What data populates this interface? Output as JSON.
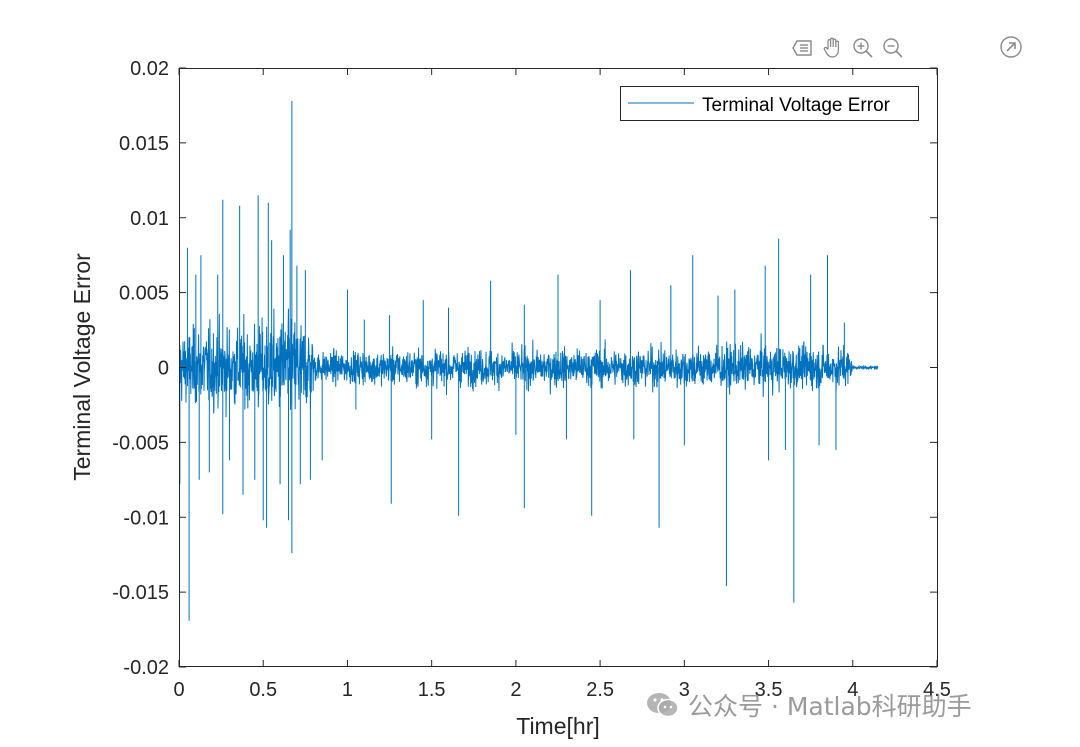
{
  "chart_data": {
    "type": "line",
    "xlabel": "Time[hr]",
    "ylabel": "Terminal Voltage Error",
    "xlim": [
      0,
      4.5
    ],
    "ylim": [
      -0.02,
      0.02
    ],
    "xticks": [
      0,
      0.5,
      1,
      1.5,
      2,
      2.5,
      3,
      3.5,
      4,
      4.5
    ],
    "xtick_labels": [
      "0",
      "0.5",
      "1",
      "1.5",
      "2",
      "2.5",
      "3",
      "3.5",
      "4",
      "4.5"
    ],
    "yticks": [
      -0.02,
      -0.015,
      -0.01,
      -0.005,
      0,
      0.005,
      0.01,
      0.015,
      0.02
    ],
    "ytick_labels": [
      "-0.02",
      "-0.015",
      "-0.01",
      "-0.005",
      "0",
      "0.005",
      "0.01",
      "0.015",
      "0.02"
    ],
    "grid": false,
    "legend_position": "top-right",
    "series": [
      {
        "name": "Terminal Voltage Error",
        "color": "#0072BD",
        "envelope": [
          {
            "t": 0.0,
            "amp": 0.0035
          },
          {
            "t": 0.2,
            "amp": 0.004
          },
          {
            "t": 0.4,
            "amp": 0.004
          },
          {
            "t": 0.5,
            "amp": 0.0045
          },
          {
            "t": 0.65,
            "amp": 0.005
          },
          {
            "t": 0.79,
            "amp": 0.0045
          },
          {
            "t": 0.8,
            "amp": 0.0015
          },
          {
            "t": 1.5,
            "amp": 0.0018
          },
          {
            "t": 2.0,
            "amp": 0.0018
          },
          {
            "t": 3.0,
            "amp": 0.002
          },
          {
            "t": 3.5,
            "amp": 0.0022
          },
          {
            "t": 3.98,
            "amp": 0.002
          },
          {
            "t": 4.0,
            "amp": 0.0002
          },
          {
            "t": 4.15,
            "amp": 0.0001
          }
        ],
        "spikes": [
          {
            "t": 0.005,
            "y": 0.0015
          },
          {
            "t": 0.005,
            "y": -0.0078
          },
          {
            "t": 0.05,
            "y": 0.008
          },
          {
            "t": 0.06,
            "y": -0.0169
          },
          {
            "t": 0.1,
            "y": 0.0062
          },
          {
            "t": 0.12,
            "y": -0.0075
          },
          {
            "t": 0.13,
            "y": 0.0075
          },
          {
            "t": 0.18,
            "y": -0.007
          },
          {
            "t": 0.23,
            "y": 0.0062
          },
          {
            "t": 0.26,
            "y": 0.0112
          },
          {
            "t": 0.26,
            "y": -0.0098
          },
          {
            "t": 0.3,
            "y": -0.0062
          },
          {
            "t": 0.36,
            "y": 0.0108
          },
          {
            "t": 0.38,
            "y": -0.0085
          },
          {
            "t": 0.45,
            "y": -0.0075
          },
          {
            "t": 0.47,
            "y": 0.0115
          },
          {
            "t": 0.5,
            "y": -0.0102
          },
          {
            "t": 0.52,
            "y": -0.0107
          },
          {
            "t": 0.53,
            "y": 0.011
          },
          {
            "t": 0.55,
            "y": 0.0085
          },
          {
            "t": 0.6,
            "y": -0.0078
          },
          {
            "t": 0.62,
            "y": 0.0075
          },
          {
            "t": 0.65,
            "y": -0.0102
          },
          {
            "t": 0.66,
            "y": 0.0092
          },
          {
            "t": 0.67,
            "y": 0.0178
          },
          {
            "t": 0.67,
            "y": -0.0124
          },
          {
            "t": 0.7,
            "y": 0.0068
          },
          {
            "t": 0.72,
            "y": -0.0078
          },
          {
            "t": 0.75,
            "y": 0.0065
          },
          {
            "t": 0.78,
            "y": -0.0075
          },
          {
            "t": 0.85,
            "y": -0.0062
          },
          {
            "t": 1.0,
            "y": 0.0052
          },
          {
            "t": 1.05,
            "y": -0.0028
          },
          {
            "t": 1.1,
            "y": 0.0032
          },
          {
            "t": 1.25,
            "y": 0.0035
          },
          {
            "t": 1.26,
            "y": -0.0091
          },
          {
            "t": 1.45,
            "y": 0.0045
          },
          {
            "t": 1.5,
            "y": -0.0048
          },
          {
            "t": 1.6,
            "y": 0.004
          },
          {
            "t": 1.66,
            "y": -0.0099
          },
          {
            "t": 1.85,
            "y": 0.0058
          },
          {
            "t": 2.0,
            "y": -0.0045
          },
          {
            "t": 2.05,
            "y": 0.0042
          },
          {
            "t": 2.05,
            "y": -0.0094
          },
          {
            "t": 2.25,
            "y": 0.0062
          },
          {
            "t": 2.3,
            "y": -0.0048
          },
          {
            "t": 2.45,
            "y": -0.0099
          },
          {
            "t": 2.5,
            "y": 0.0045
          },
          {
            "t": 2.68,
            "y": 0.0065
          },
          {
            "t": 2.7,
            "y": -0.0048
          },
          {
            "t": 2.85,
            "y": -0.0107
          },
          {
            "t": 2.92,
            "y": 0.0055
          },
          {
            "t": 3.0,
            "y": -0.0052
          },
          {
            "t": 3.05,
            "y": 0.0075
          },
          {
            "t": 3.2,
            "y": 0.0048
          },
          {
            "t": 3.25,
            "y": -0.0146
          },
          {
            "t": 3.3,
            "y": 0.0052
          },
          {
            "t": 3.48,
            "y": 0.0068
          },
          {
            "t": 3.5,
            "y": -0.0062
          },
          {
            "t": 3.56,
            "y": 0.0086
          },
          {
            "t": 3.6,
            "y": -0.0055
          },
          {
            "t": 3.65,
            "y": -0.0157
          },
          {
            "t": 3.75,
            "y": 0.0062
          },
          {
            "t": 3.8,
            "y": -0.0052
          },
          {
            "t": 3.85,
            "y": 0.0075
          },
          {
            "t": 3.9,
            "y": -0.0055
          },
          {
            "t": 3.95,
            "y": 0.003
          }
        ]
      }
    ]
  },
  "toolbar": {
    "buttons": [
      {
        "name": "data-tips-button",
        "icon": "data-tips-icon"
      },
      {
        "name": "pan-button",
        "icon": "hand-icon"
      },
      {
        "name": "zoom-in-button",
        "icon": "zoom-in-icon"
      },
      {
        "name": "zoom-out-button",
        "icon": "zoom-out-icon"
      }
    ],
    "export_icon": "export-arrow-icon"
  },
  "watermark": {
    "text": "公众号 · Matlab科研助手",
    "icon": "wechat-logo-icon"
  }
}
